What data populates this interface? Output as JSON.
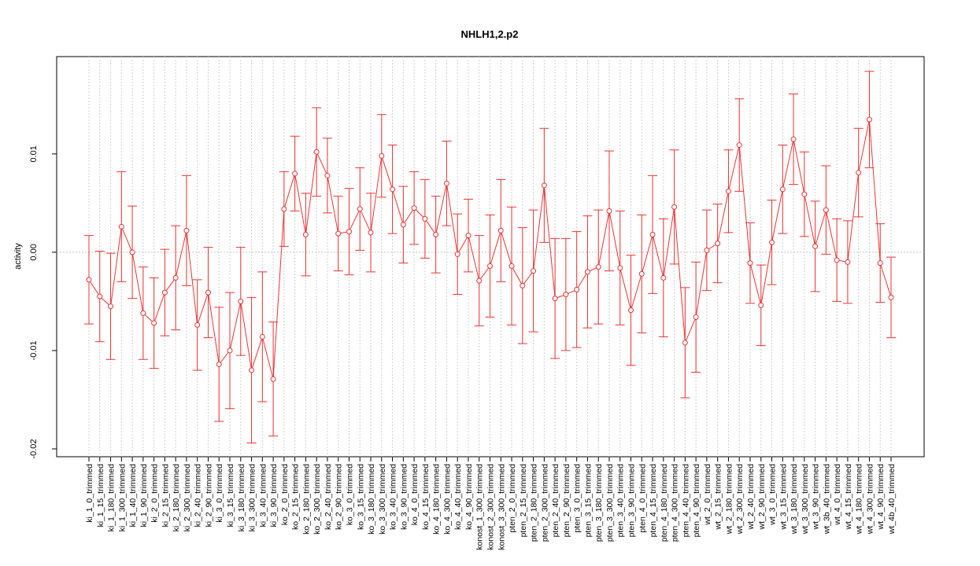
{
  "chart_data": {
    "type": "errorbar_line",
    "title": "NHLH1,2.p2",
    "ylabel": "activity",
    "categories": [
      "ki_1_0_trimmed",
      "ki_1_15_trimmed",
      "ki_1_180_trimmed",
      "ki_1_300_trimmed",
      "ki_1_40_trimmed",
      "ki_1_90_trimmed",
      "ki_2_0_trimmed",
      "ki_2_15_trimmed",
      "ki_2_180_trimmed",
      "ki_2_300_trimmed",
      "ki_2_40_trimmed",
      "ki_2_90_trimmed",
      "ki_3_0_trimmed",
      "ki_3_15_trimmed",
      "ki_3_180_trimmed",
      "ki_3_300_trimmed",
      "ki_3_40_trimmed",
      "ki_3_90_trimmed",
      "ko_2_0_trimmed",
      "ko_2_15_trimmed",
      "ko_2_180_trimmed",
      "ko_2_300_trimmed",
      "ko_2_40_trimmed",
      "ko_2_90_trimmed",
      "ko_3_0_trimmed",
      "ko_3_15_trimmed",
      "ko_3_180_trimmed",
      "ko_3_300_trimmed",
      "ko_3_40_trimmed",
      "ko_3_90_trimmed",
      "ko_4_0_trimmed",
      "ko_4_15_trimmed",
      "ko_4_180_trimmed",
      "ko_4_300_trimmed",
      "ko_4_40_trimmed",
      "ko_4_90_trimmed",
      "konost_1_300_trimmed",
      "konost_2_300_trimmed",
      "konost_3_300_trimmed",
      "pten_2_0_trimmed",
      "pten_2_15_trimmed",
      "pten_2_180_trimmed",
      "pten_2_300_trimmed",
      "pten_2_40_trimmed",
      "pten_2_90_trimmed",
      "pten_3_0_trimmed",
      "pten_3_15_trimmed",
      "pten_3_180_trimmed",
      "pten_3_300_trimmed",
      "pten_3_40_trimmed",
      "pten_3_90_trimmed",
      "pten_4_0_trimmed",
      "pten_4_15_trimmed",
      "pten_4_180_trimmed",
      "pten_4_300_trimmed",
      "pten_4_40_trimmed",
      "pten_4_90_trimmed",
      "wt_2_0_trimmed",
      "wt_2_15_trimmed",
      "wt_2_180_trimmed",
      "wt_2_300_trimmed",
      "wt_2_40_trimmed",
      "wt_2_90_trimmed",
      "wt_3_0_trimmed",
      "wt_3_15_trimmed",
      "wt_3_180_trimmed",
      "wt_3_300_trimmed",
      "wt_3_90_trimmed",
      "wt_3b_40_trimmed",
      "wt_4_0_trimmed",
      "wt_4_15_trimmed",
      "wt_4_180_trimmed",
      "wt_4_300_trimmed",
      "wt_4_90_trimmed",
      "wt_4b_40_trimmed"
    ],
    "values": [
      -0.0028,
      -0.0045,
      -0.0055,
      0.0026,
      0.0,
      -0.0062,
      -0.0072,
      -0.0041,
      -0.0026,
      0.0022,
      -0.0074,
      -0.0041,
      -0.0114,
      -0.01,
      -0.005,
      -0.012,
      -0.0086,
      -0.0129,
      0.0044,
      0.008,
      0.0018,
      0.0102,
      0.0078,
      0.0019,
      0.0021,
      0.0044,
      0.002,
      0.0098,
      0.0064,
      0.0028,
      0.0045,
      0.0034,
      0.0018,
      0.007,
      -0.0002,
      0.0017,
      -0.0029,
      -0.0014,
      0.0022,
      -0.0014,
      -0.0034,
      -0.0019,
      0.0068,
      -0.0047,
      -0.0043,
      -0.0038,
      -0.002,
      -0.0015,
      0.0042,
      -0.0016,
      -0.0059,
      -0.0022,
      0.0018,
      -0.0026,
      0.0046,
      -0.0092,
      -0.0066,
      0.0002,
      0.0009,
      0.0062,
      0.0109,
      -0.0011,
      -0.0054,
      0.001,
      0.0064,
      0.0115,
      0.0059,
      0.0006,
      0.0043,
      -0.0008,
      -0.001,
      0.0081,
      0.0135,
      -0.0011,
      -0.0046
    ],
    "errors": [
      0.0045,
      0.0046,
      0.0054,
      0.0056,
      0.0047,
      0.0047,
      0.0046,
      0.0044,
      0.0053,
      0.0056,
      0.0046,
      0.0046,
      0.0058,
      0.0059,
      0.0055,
      0.0074,
      0.0066,
      0.0058,
      0.0038,
      0.0038,
      0.0042,
      0.0045,
      0.0038,
      0.0038,
      0.0044,
      0.0042,
      0.004,
      0.0042,
      0.0045,
      0.0039,
      0.0037,
      0.004,
      0.0039,
      0.0043,
      0.0041,
      0.0037,
      0.0046,
      0.0052,
      0.0052,
      0.006,
      0.0059,
      0.0062,
      0.0058,
      0.0061,
      0.0057,
      0.0059,
      0.0057,
      0.0058,
      0.0061,
      0.0058,
      0.0056,
      0.006,
      0.006,
      0.006,
      0.0058,
      0.0056,
      0.0056,
      0.0041,
      0.004,
      0.0042,
      0.0047,
      0.0041,
      0.0041,
      0.0043,
      0.0045,
      0.0046,
      0.0043,
      0.0046,
      0.0045,
      0.0042,
      0.0042,
      0.0045,
      0.0049,
      0.004,
      0.0041
    ],
    "color": "#ee3333",
    "ylim": [
      -0.0208,
      0.0199
    ],
    "yticks": [
      -0.02,
      -0.01,
      {
        "value": 0,
        "label": "0.00"
      },
      0.01
    ],
    "reference_line": 0,
    "grid": true
  }
}
